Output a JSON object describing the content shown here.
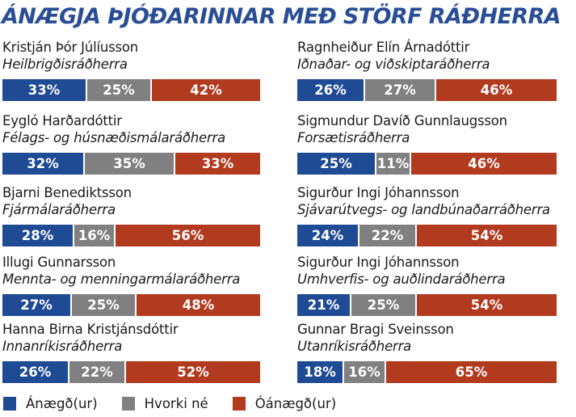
{
  "chart_data": {
    "type": "bar",
    "orientation": "horizontal-stacked",
    "title": "ÁNÆGJA ÞJÓÐARINNAR MEÐ STÖRF RÁÐHERRA",
    "legend_position": "bottom",
    "series": [
      {
        "name": "Ánægð(ur)",
        "color": "#1f4a94"
      },
      {
        "name": "Hvorki né",
        "color": "#808080"
      },
      {
        "name": "Óánægð(ur)",
        "color": "#b23a1f"
      }
    ],
    "ministers": [
      {
        "name": "Kristján Þór Júlíusson",
        "role": "Heilbrigðisráðherra",
        "values": [
          33,
          25,
          42
        ],
        "labels": [
          "33%",
          "25%",
          "42%"
        ]
      },
      {
        "name": "Ragnheiður Elín Árnadóttir",
        "role": "Iðnaðar- og viðskiptaráðherra",
        "values": [
          26,
          27,
          46
        ],
        "labels": [
          "26%",
          "27%",
          "46%"
        ]
      },
      {
        "name": "Eygló Harðardóttir",
        "role": "Félags- og húsnæðismálaráðherra",
        "values": [
          32,
          35,
          33
        ],
        "labels": [
          "32%",
          "35%",
          "33%"
        ]
      },
      {
        "name": "Sigmundur Davíð Gunnlaugsson",
        "role": "Forsætisráðherra",
        "values": [
          25,
          11,
          46
        ],
        "labels": [
          "25%",
          "11%",
          "46%"
        ]
      },
      {
        "name": "Bjarni Benediktsson",
        "role": "Fjármálaráðherra",
        "values": [
          28,
          16,
          56
        ],
        "labels": [
          "28%",
          "16%",
          "56%"
        ]
      },
      {
        "name": "Sigurður Ingi Jóhannsson",
        "role": "Sjávarútvegs- og landbúnaðarráðherra",
        "values": [
          24,
          22,
          54
        ],
        "labels": [
          "24%",
          "22%",
          "54%"
        ]
      },
      {
        "name": "Illugi Gunnarsson",
        "role": "Mennta- og menningarmálaráðherra",
        "values": [
          27,
          25,
          48
        ],
        "labels": [
          "27%",
          "25%",
          "48%"
        ]
      },
      {
        "name": "Sigurður Ingi Jóhannsson",
        "role": "Umhverfis- og auðlindaráðherra",
        "values": [
          21,
          25,
          54
        ],
        "labels": [
          "21%",
          "25%",
          "54%"
        ]
      },
      {
        "name": "Hanna Birna Kristjánsdóttir",
        "role": "Innanríkisráðherra",
        "values": [
          26,
          22,
          52
        ],
        "labels": [
          "26%",
          "22%",
          "52%"
        ]
      },
      {
        "name": "Gunnar Bragi Sveinsson",
        "role": "Utanríkisráðherra",
        "values": [
          18,
          16,
          65
        ],
        "labels": [
          "18%",
          "16%",
          "65%"
        ]
      }
    ]
  }
}
